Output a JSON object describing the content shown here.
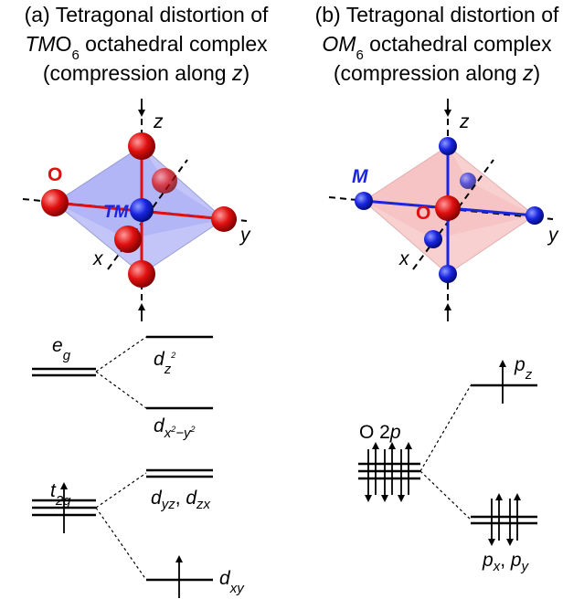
{
  "panel_a": {
    "title": {
      "line1": "(a) Tetragonal distortion of",
      "line2": [
        "TM",
        "O",
        "6",
        " octahedral complex"
      ],
      "line3": [
        "(compression along ",
        "z",
        ")"
      ]
    },
    "axes": {
      "z": "z",
      "y": "y",
      "x": "x"
    },
    "atoms": {
      "ligand": "O",
      "center": "TM"
    },
    "levels": {
      "eg": [
        "e",
        "g"
      ],
      "dz2": [
        "d",
        "z",
        "2"
      ],
      "dx2y2": [
        "d",
        "x",
        "2",
        "−y",
        "2"
      ],
      "t2g": [
        "t",
        "2g"
      ],
      "dyz_dzx": [
        "d",
        "yz",
        ", ",
        "d",
        "zx"
      ],
      "dxy": [
        "d",
        "xy"
      ]
    }
  },
  "panel_b": {
    "title": {
      "line1": "(b) Tetragonal distortion of",
      "line2": [
        "OM",
        "6",
        " octahedral complex"
      ],
      "line3": [
        "(compression along ",
        "z",
        ")"
      ]
    },
    "axes": {
      "z": "z",
      "y": "y",
      "x": "x"
    },
    "atoms": {
      "ligand": "M",
      "center": "O"
    },
    "levels": {
      "o2p": [
        "O 2",
        "p"
      ],
      "pz": [
        "p",
        "z"
      ],
      "pxpy": [
        "p",
        "x",
        ", ",
        "p",
        "y"
      ]
    }
  }
}
